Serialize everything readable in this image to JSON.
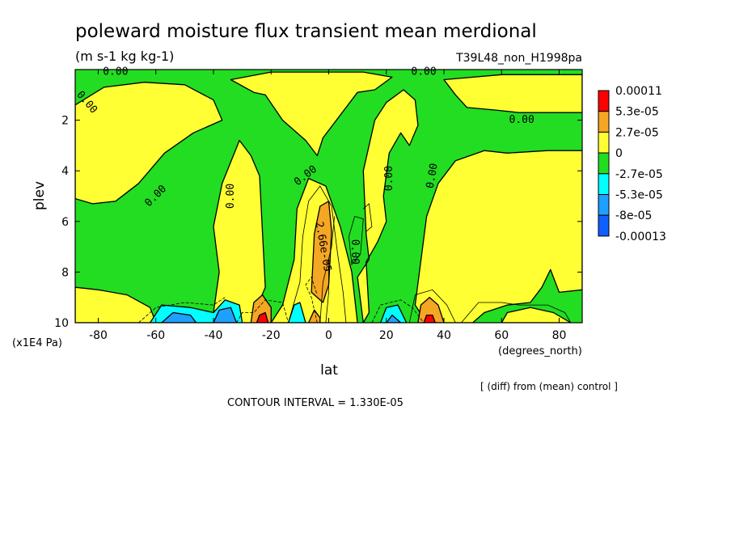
{
  "title": "poleward moisture flux transient mean merdional",
  "units": "(m s-1 kg kg-1)",
  "run_label": "T39L48_non_H1998pa",
  "diff_note": "[ (diff) from (mean) control ]",
  "contour_interval": "CONTOUR INTERVAL = 1.330E-05",
  "colors": {
    "red": "#ff0000",
    "orange": "#f5a623",
    "yellow": "#ffff33",
    "green": "#22dd22",
    "cyan": "#00ffff",
    "skyblue": "#1ea0ff",
    "blue": "#1060ff"
  },
  "chart_data": {
    "type": "heatmap",
    "xlabel": "lat",
    "x_unit": "(degrees_north)",
    "ylabel": "plev",
    "y_unit": "(x1E4 Pa)",
    "xlim": [
      -88,
      88
    ],
    "ylim": [
      10,
      0
    ],
    "x_ticks": [
      -80,
      -60,
      -40,
      -20,
      0,
      20,
      40,
      60,
      80
    ],
    "x_tick_labels": [
      "-80",
      "-60",
      "-40",
      "-20",
      "0",
      "20",
      "40",
      "60",
      "80"
    ],
    "y_ticks": [
      2,
      4,
      6,
      8,
      10
    ],
    "y_tick_labels": [
      "2",
      "4",
      "6",
      "8",
      "10"
    ],
    "legend": {
      "placement": "right",
      "labels": [
        "0.00011",
        "5.3e-05",
        "2.7e-05",
        "0",
        "-2.7e-05",
        "-5.3e-05",
        "-8e-05",
        "-0.00013"
      ],
      "bands": [
        "red",
        "orange",
        "yellow",
        "green",
        "cyan",
        "skyblue",
        "blue"
      ]
    },
    "contour_labels": [
      {
        "text": "0.00",
        "lat": -74,
        "plev": 0.1,
        "angle": 0
      },
      {
        "text": "0.00",
        "lat": 33,
        "plev": 0.1,
        "angle": 0
      },
      {
        "text": "0.00",
        "lat": -84,
        "plev": 1.3,
        "angle": 50
      },
      {
        "text": "0.00",
        "lat": 67,
        "plev": 2.0,
        "angle": 0
      },
      {
        "text": "0.00",
        "lat": -60,
        "plev": 5.0,
        "angle": -45
      },
      {
        "text": "0.00",
        "lat": -34,
        "plev": 5.0,
        "angle": -90
      },
      {
        "text": "0.00",
        "lat": -8,
        "plev": 4.2,
        "angle": -38
      },
      {
        "text": "0.00",
        "lat": 21,
        "plev": 4.3,
        "angle": -90
      },
      {
        "text": "0.00",
        "lat": 36,
        "plev": 4.2,
        "angle": -80
      },
      {
        "text": "0.00",
        "lat": 9,
        "plev": 7.2,
        "angle": 90
      },
      {
        "text": "2.66e-05",
        "lat": -2,
        "plev": 7.0,
        "angle": 80
      }
    ],
    "regions": [
      {
        "color": "yellow",
        "points": [
          [
            -88,
            1.4
          ],
          [
            -78,
            0.7
          ],
          [
            -64,
            0.5
          ],
          [
            -50,
            0.6
          ],
          [
            -40,
            1.2
          ],
          [
            -37,
            2.0
          ],
          [
            -47,
            2.5
          ],
          [
            -57,
            3.3
          ],
          [
            -66,
            4.5
          ],
          [
            -74,
            5.2
          ],
          [
            -82,
            5.3
          ],
          [
            -88,
            5.1
          ]
        ]
      },
      {
        "color": "yellow",
        "points": [
          [
            -88,
            8.6
          ],
          [
            -80,
            8.7
          ],
          [
            -70,
            8.9
          ],
          [
            -62,
            9.4
          ],
          [
            -60,
            10
          ],
          [
            -88,
            10
          ]
        ]
      },
      {
        "color": "yellow",
        "points": [
          [
            -38,
            10
          ],
          [
            -40,
            9.6
          ],
          [
            -38,
            8.0
          ],
          [
            -40,
            6.2
          ],
          [
            -37,
            4.5
          ],
          [
            -31,
            2.8
          ],
          [
            -27,
            3.4
          ],
          [
            -24,
            4.2
          ],
          [
            -22,
            8.6
          ],
          [
            -25,
            9.4
          ],
          [
            -27,
            10
          ]
        ]
      },
      {
        "color": "yellow",
        "points": [
          [
            -34,
            0.4
          ],
          [
            -26,
            0.9
          ],
          [
            -22,
            1.0
          ],
          [
            -16,
            2.0
          ],
          [
            -8,
            2.8
          ],
          [
            -4,
            3.4
          ],
          [
            -2,
            2.7
          ],
          [
            4,
            1.8
          ],
          [
            10,
            0.9
          ],
          [
            16,
            0.8
          ],
          [
            22,
            0.3
          ],
          [
            12,
            0.1
          ],
          [
            -20,
            0.1
          ]
        ]
      },
      {
        "color": "yellow",
        "points": [
          [
            -20,
            10
          ],
          [
            -16,
            9.3
          ],
          [
            -12,
            7.5
          ],
          [
            -11,
            5.5
          ],
          [
            -7,
            4.3
          ],
          [
            -1,
            4.6
          ],
          [
            4,
            6.2
          ],
          [
            8,
            8.0
          ],
          [
            10,
            10
          ]
        ]
      },
      {
        "color": "yellow",
        "points": [
          [
            12,
            10
          ],
          [
            14,
            9.6
          ],
          [
            13,
            7.6
          ],
          [
            17,
            6.8
          ],
          [
            20,
            6.0
          ],
          [
            19,
            5.0
          ],
          [
            21,
            3.3
          ],
          [
            25,
            2.5
          ],
          [
            28,
            3.0
          ],
          [
            31,
            2.2
          ],
          [
            30,
            1.2
          ],
          [
            26,
            0.8
          ],
          [
            20,
            1.3
          ],
          [
            16,
            2.0
          ],
          [
            12,
            4.0
          ],
          [
            13,
            6.5
          ],
          [
            14,
            7.5
          ],
          [
            10,
            8.2
          ],
          [
            12,
            10
          ]
        ]
      },
      {
        "color": "yellow",
        "points": [
          [
            34,
            10
          ],
          [
            30,
            9.3
          ],
          [
            34,
            5.8
          ],
          [
            38,
            4.5
          ],
          [
            44,
            3.6
          ],
          [
            54,
            3.2
          ],
          [
            62,
            3.3
          ],
          [
            76,
            3.2
          ],
          [
            88,
            3.2
          ],
          [
            88,
            8.7
          ],
          [
            80,
            8.8
          ],
          [
            77,
            7.9
          ],
          [
            74,
            8.6
          ],
          [
            70,
            9.2
          ],
          [
            62,
            9.3
          ],
          [
            54,
            9.6
          ],
          [
            50,
            10
          ]
        ]
      },
      {
        "color": "yellow",
        "points": [
          [
            40,
            0.4
          ],
          [
            44,
            1.0
          ],
          [
            48,
            1.5
          ],
          [
            58,
            1.6
          ],
          [
            66,
            1.7
          ],
          [
            76,
            1.7
          ],
          [
            88,
            1.7
          ],
          [
            88,
            0.2
          ],
          [
            60,
            0.2
          ]
        ]
      },
      {
        "color": "yellow",
        "points": [
          [
            60,
            10
          ],
          [
            62,
            9.6
          ],
          [
            70,
            9.4
          ],
          [
            78,
            9.6
          ],
          [
            84,
            10
          ]
        ]
      },
      {
        "color": "orange",
        "points": [
          [
            -6,
            8.8
          ],
          [
            -5,
            6.5
          ],
          [
            -3,
            5.4
          ],
          [
            0,
            5.2
          ],
          [
            1,
            6.4
          ],
          [
            0,
            8.5
          ],
          [
            -2,
            9.2
          ]
        ]
      },
      {
        "color": "orange",
        "points": [
          [
            -27,
            10
          ],
          [
            -26,
            9.2
          ],
          [
            -23,
            8.9
          ],
          [
            -20,
            9.4
          ],
          [
            -20,
            10
          ]
        ]
      },
      {
        "color": "orange",
        "points": [
          [
            31,
            10
          ],
          [
            32,
            9.3
          ],
          [
            35,
            9.0
          ],
          [
            38,
            9.3
          ],
          [
            40,
            10
          ]
        ]
      },
      {
        "color": "orange",
        "points": [
          [
            -7,
            10
          ],
          [
            -5,
            9.5
          ],
          [
            -3,
            9.8
          ],
          [
            -3,
            10
          ]
        ]
      },
      {
        "color": "red",
        "points": [
          [
            -25,
            10
          ],
          [
            -24,
            9.7
          ],
          [
            -22,
            9.6
          ],
          [
            -21,
            10
          ]
        ]
      },
      {
        "color": "red",
        "points": [
          [
            33,
            10
          ],
          [
            34,
            9.7
          ],
          [
            36,
            9.7
          ],
          [
            37,
            10
          ]
        ]
      },
      {
        "color": "cyan",
        "points": [
          [
            -62,
            10
          ],
          [
            -58,
            9.3
          ],
          [
            -48,
            9.4
          ],
          [
            -40,
            9.6
          ],
          [
            -36,
            9.1
          ],
          [
            -31,
            9.3
          ],
          [
            -30,
            10
          ]
        ]
      },
      {
        "color": "cyan",
        "points": [
          [
            -14,
            10
          ],
          [
            -12,
            9.3
          ],
          [
            -10,
            9.2
          ],
          [
            -8,
            10
          ]
        ]
      },
      {
        "color": "cyan",
        "points": [
          [
            18,
            10
          ],
          [
            20,
            9.4
          ],
          [
            24,
            9.3
          ],
          [
            27,
            10
          ]
        ]
      },
      {
        "color": "skyblue",
        "points": [
          [
            -58,
            10
          ],
          [
            -54,
            9.6
          ],
          [
            -48,
            9.7
          ],
          [
            -46,
            10
          ]
        ]
      },
      {
        "color": "skyblue",
        "points": [
          [
            -40,
            10
          ],
          [
            -38,
            9.5
          ],
          [
            -34,
            9.4
          ],
          [
            -32,
            10
          ]
        ]
      },
      {
        "color": "skyblue",
        "points": [
          [
            20,
            10
          ],
          [
            22,
            9.7
          ],
          [
            25,
            10
          ]
        ]
      }
    ],
    "contour_lines": [
      [
        [
          -14,
          10
        ],
        [
          -10,
          8.4
        ],
        [
          -9,
          6.6
        ],
        [
          -7,
          5.2
        ],
        [
          -3,
          4.6
        ],
        [
          1,
          5.4
        ],
        [
          3,
          7.2
        ],
        [
          5,
          8.8
        ],
        [
          6,
          10
        ]
      ],
      [
        [
          -3,
          10
        ],
        [
          -2,
          8.4
        ],
        [
          1,
          7.0
        ],
        [
          2,
          5.8
        ]
      ],
      [
        [
          -1,
          10
        ],
        [
          0,
          8.8
        ],
        [
          0,
          7.5
        ]
      ],
      [
        [
          7,
          6.6
        ],
        [
          9,
          5.8
        ],
        [
          12,
          5.9
        ],
        [
          11,
          7.3
        ],
        [
          8,
          7.7
        ],
        [
          7,
          6.6
        ]
      ],
      [
        [
          12,
          5.5
        ],
        [
          14,
          5.3
        ],
        [
          15,
          6.2
        ],
        [
          13,
          6.4
        ]
      ],
      [
        [
          -32,
          10
        ],
        [
          -30,
          9.6
        ],
        [
          -26,
          9.6
        ],
        [
          -22,
          9.1
        ],
        [
          -16,
          9.2
        ],
        [
          -14,
          10
        ]
      ],
      [
        [
          -66,
          10
        ],
        [
          -60,
          9.4
        ],
        [
          -50,
          9.2
        ],
        [
          -40,
          9.3
        ],
        [
          -36,
          9.0
        ]
      ],
      [
        [
          -4,
          10
        ],
        [
          -6,
          9.0
        ],
        [
          -8,
          8.5
        ],
        [
          -6,
          8.2
        ],
        [
          -4,
          8.9
        ]
      ],
      [
        [
          15,
          10
        ],
        [
          18,
          9.3
        ],
        [
          25,
          9.1
        ],
        [
          29,
          9.4
        ],
        [
          33,
          10
        ]
      ],
      [
        [
          28,
          10
        ],
        [
          30,
          8.9
        ],
        [
          36,
          8.7
        ],
        [
          41,
          9.3
        ],
        [
          44,
          10
        ]
      ],
      [
        [
          46,
          10
        ],
        [
          52,
          9.2
        ],
        [
          60,
          9.2
        ],
        [
          66,
          9.3
        ],
        [
          76,
          9.3
        ],
        [
          82,
          9.6
        ],
        [
          84,
          10
        ]
      ]
    ]
  }
}
